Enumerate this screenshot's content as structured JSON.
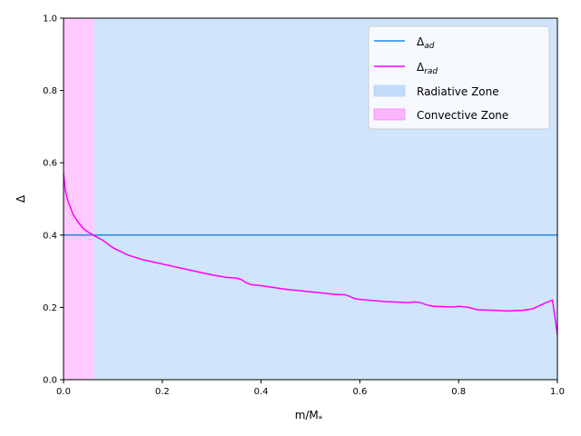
{
  "chart_data": {
    "type": "line",
    "xlabel_base": "m/M",
    "xlabel_sub": "*",
    "ylabel": "Δ",
    "xlim": [
      0,
      1
    ],
    "ylim": [
      0,
      1
    ],
    "x_ticks": [
      "0.0",
      "0.2",
      "0.4",
      "0.6",
      "0.8",
      "1.0"
    ],
    "y_ticks": [
      "0.0",
      "0.2",
      "0.4",
      "0.6",
      "0.8",
      "1.0"
    ],
    "grid": false,
    "legend_position": "top-right",
    "zones": [
      {
        "name": "Convective Zone",
        "x_start": 0.0,
        "x_end": 0.062,
        "color": "#ff66ff",
        "opacity": 0.35
      },
      {
        "name": "Radiative Zone",
        "x_start": 0.062,
        "x_end": 1.0,
        "color": "#a9cdf7",
        "opacity": 0.55
      }
    ],
    "series": [
      {
        "name_base": "Δ",
        "name_sub": "ad",
        "color": "#1e88e5",
        "x": [
          0.0,
          1.0
        ],
        "y": [
          0.4,
          0.4
        ]
      },
      {
        "name_base": "Δ",
        "name_sub": "rad",
        "color": "#ff00ff",
        "x": [
          0.0,
          0.004,
          0.01,
          0.02,
          0.03,
          0.04,
          0.05,
          0.06,
          0.08,
          0.1,
          0.13,
          0.16,
          0.2,
          0.25,
          0.3,
          0.33,
          0.35,
          0.36,
          0.37,
          0.38,
          0.4,
          0.45,
          0.5,
          0.55,
          0.57,
          0.58,
          0.59,
          0.6,
          0.65,
          0.7,
          0.71,
          0.72,
          0.74,
          0.75,
          0.79,
          0.8,
          0.82,
          0.84,
          0.85,
          0.87,
          0.9,
          0.93,
          0.95,
          0.98,
          0.99,
          1.0
        ],
        "y": [
          0.57,
          0.52,
          0.49,
          0.455,
          0.435,
          0.418,
          0.408,
          0.4,
          0.385,
          0.365,
          0.345,
          0.332,
          0.32,
          0.305,
          0.29,
          0.283,
          0.281,
          0.277,
          0.268,
          0.263,
          0.26,
          0.25,
          0.243,
          0.236,
          0.235,
          0.23,
          0.224,
          0.222,
          0.216,
          0.213,
          0.215,
          0.214,
          0.205,
          0.203,
          0.201,
          0.203,
          0.2,
          0.193,
          0.193,
          0.192,
          0.19,
          0.192,
          0.196,
          0.215,
          0.22,
          0.125
        ]
      }
    ]
  }
}
